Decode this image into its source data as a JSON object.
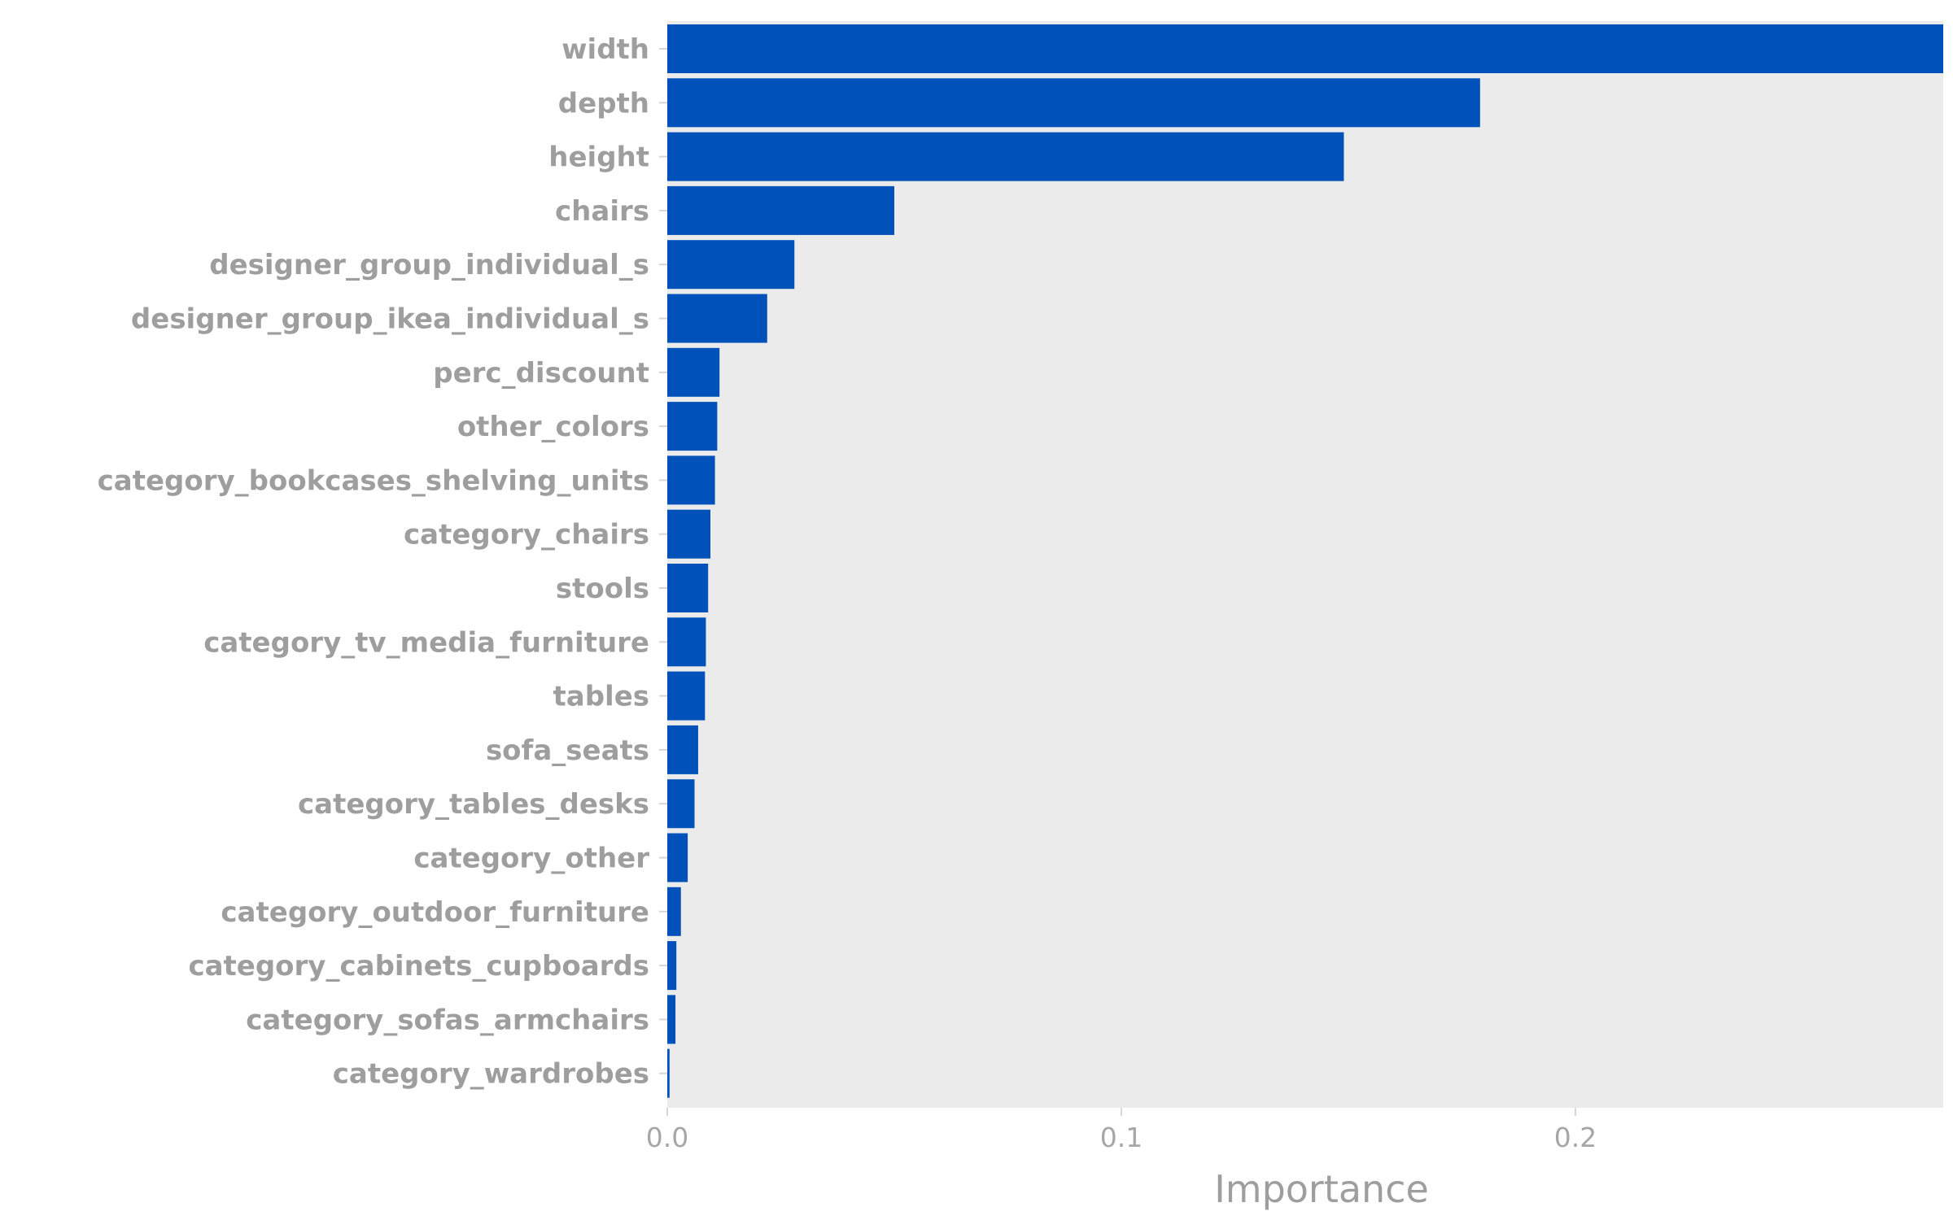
{
  "chart_data": {
    "type": "bar",
    "orientation": "horizontal",
    "categories": [
      "width",
      "depth",
      "height",
      "chairs",
      "designer_group_individual_s",
      "designer_group_ikea_individual_s",
      "perc_discount",
      "other_colors",
      "category_bookcases_shelving_units",
      "category_chairs",
      "stools",
      "category_tv_media_furniture",
      "tables",
      "sofa_seats",
      "category_tables_desks",
      "category_other",
      "category_outdoor_furniture",
      "category_cabinets_cupboards",
      "category_sofas_armchairs",
      "category_wardrobes"
    ],
    "values": [
      0.281,
      0.179,
      0.149,
      0.05,
      0.028,
      0.022,
      0.0115,
      0.011,
      0.0105,
      0.0095,
      0.009,
      0.0085,
      0.0083,
      0.0068,
      0.006,
      0.0045,
      0.003,
      0.002,
      0.0018,
      0.0005
    ],
    "xlabel": "Importance",
    "ylabel": "",
    "xlim": [
      0,
      0.281
    ],
    "xticks": [
      "0.0",
      "0.1",
      "0.2"
    ],
    "grid": false,
    "colors": {
      "bar": "#0051BA",
      "panel": "#EBEBEB",
      "text": "#9E9E9E"
    }
  }
}
